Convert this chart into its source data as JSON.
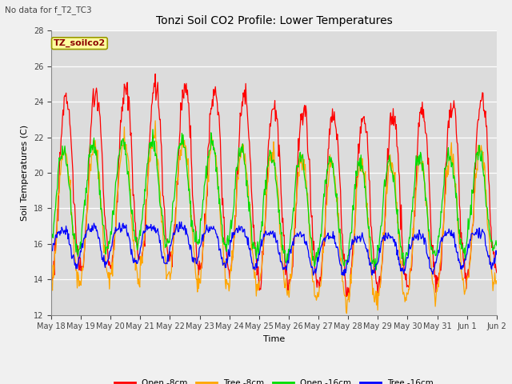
{
  "title": "Tonzi Soil CO2 Profile: Lower Temperatures",
  "subtitle": "No data for f_T2_TC3",
  "xlabel": "Time",
  "ylabel": "Soil Temperatures (C)",
  "ylim": [
    12,
    28
  ],
  "yticks": [
    12,
    14,
    16,
    18,
    20,
    22,
    24,
    26,
    28
  ],
  "legend_box_label": "TZ_soilco2",
  "legend_entries": [
    "Open -8cm",
    "Tree -8cm",
    "Open -16cm",
    "Tree -16cm"
  ],
  "line_colors": [
    "#ff0000",
    "#ffa500",
    "#00dd00",
    "#0000ff"
  ],
  "plot_bg_color": "#dcdcdc",
  "fig_bg_color": "#f0f0f0",
  "x_tick_labels": [
    "May 18",
    "May 19",
    "May 20",
    "May 21",
    "May 22",
    "May 23",
    "May 24",
    "May 25",
    "May 26",
    "May 27",
    "May 28",
    "May 29",
    "May 30",
    "May 31",
    "Jun 1",
    "Jun 2"
  ],
  "n_days": 15,
  "pts_per_day": 48
}
